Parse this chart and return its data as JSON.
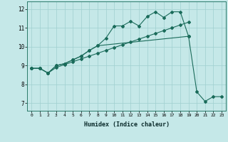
{
  "xlabel": "Humidex (Indice chaleur)",
  "xlim": [
    -0.5,
    23.5
  ],
  "ylim": [
    6.6,
    12.4
  ],
  "xticks": [
    0,
    1,
    2,
    3,
    4,
    5,
    6,
    7,
    8,
    9,
    10,
    11,
    12,
    13,
    14,
    15,
    16,
    17,
    18,
    19,
    20,
    21,
    22,
    23
  ],
  "yticks": [
    7,
    8,
    9,
    10,
    11,
    12
  ],
  "bg_color": "#c5e8e8",
  "line_color": "#1a6b5a",
  "grid_color": "#9fcfcf",
  "line1_y": [
    8.85,
    8.85,
    8.6,
    8.9,
    9.05,
    9.2,
    9.35,
    9.5,
    9.65,
    9.8,
    9.95,
    10.1,
    10.25,
    10.4,
    10.55,
    10.7,
    10.85,
    11.0,
    11.15,
    11.3,
    null,
    null,
    null,
    null
  ],
  "line2_y": [
    8.85,
    8.85,
    8.6,
    9.0,
    9.1,
    9.3,
    9.5,
    9.8,
    10.05,
    10.45,
    11.1,
    11.1,
    11.35,
    11.1,
    11.6,
    11.85,
    11.55,
    11.85,
    11.85,
    10.55,
    null,
    null,
    null,
    null
  ],
  "line3_y": [
    8.85,
    8.85,
    8.6,
    9.0,
    9.1,
    9.3,
    9.5,
    9.8,
    10.05,
    null,
    null,
    null,
    null,
    null,
    null,
    null,
    null,
    null,
    null,
    10.55,
    7.6,
    7.1,
    7.35,
    7.35
  ]
}
